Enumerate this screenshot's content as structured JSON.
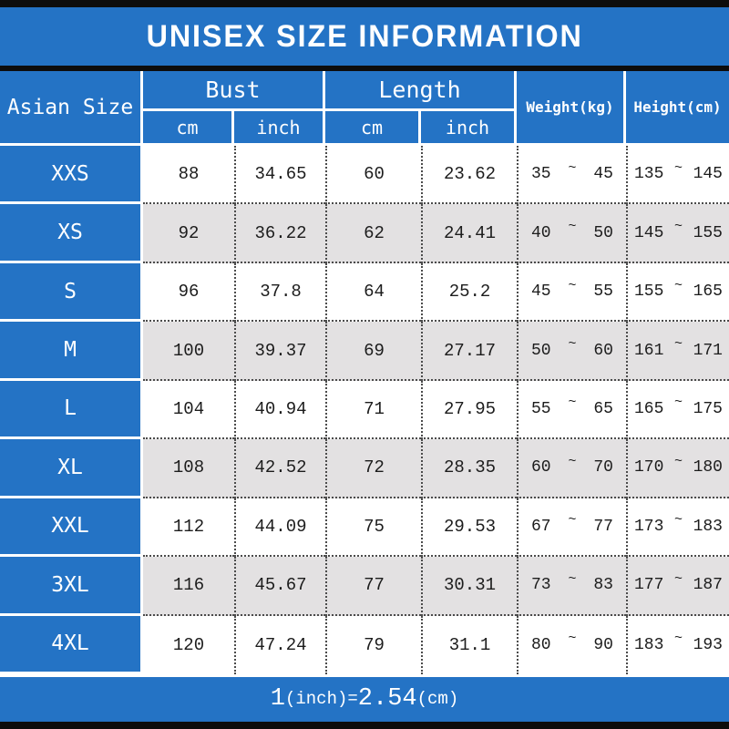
{
  "title": "UNISEX SIZE INFORMATION",
  "colors": {
    "accent_blue": "#2473c5",
    "alt_row_gray": "#e3e1e2",
    "bar_black": "#0d0d0d",
    "text_white": "#ffffff",
    "text_black": "#1c1c1c"
  },
  "header": {
    "size_column": "Asian Size",
    "bust": "Bust",
    "length": "Length",
    "cm": "cm",
    "inch": "inch",
    "weight": "Weight(kg)",
    "height": "Height(cm)"
  },
  "tilde": "~",
  "rows": [
    {
      "size": "XXS",
      "bust_cm": "88",
      "bust_inch": "34.65",
      "length_cm": "60",
      "length_inch": "23.62",
      "weight_min": "35",
      "weight_max": "45",
      "height_min": "135",
      "height_max": "145"
    },
    {
      "size": "XS",
      "bust_cm": "92",
      "bust_inch": "36.22",
      "length_cm": "62",
      "length_inch": "24.41",
      "weight_min": "40",
      "weight_max": "50",
      "height_min": "145",
      "height_max": "155"
    },
    {
      "size": "S",
      "bust_cm": "96",
      "bust_inch": "37.8",
      "length_cm": "64",
      "length_inch": "25.2",
      "weight_min": "45",
      "weight_max": "55",
      "height_min": "155",
      "height_max": "165"
    },
    {
      "size": "M",
      "bust_cm": "100",
      "bust_inch": "39.37",
      "length_cm": "69",
      "length_inch": "27.17",
      "weight_min": "50",
      "weight_max": "60",
      "height_min": "161",
      "height_max": "171"
    },
    {
      "size": "L",
      "bust_cm": "104",
      "bust_inch": "40.94",
      "length_cm": "71",
      "length_inch": "27.95",
      "weight_min": "55",
      "weight_max": "65",
      "height_min": "165",
      "height_max": "175"
    },
    {
      "size": "XL",
      "bust_cm": "108",
      "bust_inch": "42.52",
      "length_cm": "72",
      "length_inch": "28.35",
      "weight_min": "60",
      "weight_max": "70",
      "height_min": "170",
      "height_max": "180"
    },
    {
      "size": "XXL",
      "bust_cm": "112",
      "bust_inch": "44.09",
      "length_cm": "75",
      "length_inch": "29.53",
      "weight_min": "67",
      "weight_max": "77",
      "height_min": "173",
      "height_max": "183"
    },
    {
      "size": "3XL",
      "bust_cm": "116",
      "bust_inch": "45.67",
      "length_cm": "77",
      "length_inch": "30.31",
      "weight_min": "73",
      "weight_max": "83",
      "height_min": "177",
      "height_max": "187"
    },
    {
      "size": "4XL",
      "bust_cm": "120",
      "bust_inch": "47.24",
      "length_cm": "79",
      "length_inch": "31.1",
      "weight_min": "80",
      "weight_max": "90",
      "height_min": "183",
      "height_max": "193"
    }
  ],
  "footer": {
    "num1": "1",
    "label1": "(inch)=",
    "num2": "2.54",
    "label2": "(cm)"
  },
  "chart_data": {
    "type": "table",
    "title": "UNISEX SIZE INFORMATION",
    "columns": [
      "Asian Size",
      "Bust cm",
      "Bust inch",
      "Length cm",
      "Length inch",
      "Weight(kg)",
      "Height(cm)"
    ],
    "rows": [
      [
        "XXS",
        88,
        34.65,
        60,
        23.62,
        "35~45",
        "135~145"
      ],
      [
        "XS",
        92,
        36.22,
        62,
        24.41,
        "40~50",
        "145~155"
      ],
      [
        "S",
        96,
        37.8,
        64,
        25.2,
        "45~55",
        "155~165"
      ],
      [
        "M",
        100,
        39.37,
        69,
        27.17,
        "50~60",
        "161~171"
      ],
      [
        "L",
        104,
        40.94,
        71,
        27.95,
        "55~65",
        "165~175"
      ],
      [
        "XL",
        108,
        42.52,
        72,
        28.35,
        "60~70",
        "170~180"
      ],
      [
        "XXL",
        112,
        44.09,
        75,
        29.53,
        "67~77",
        "173~183"
      ],
      [
        "3XL",
        116,
        45.67,
        77,
        30.31,
        "73~83",
        "177~187"
      ],
      [
        "4XL",
        120,
        47.24,
        79,
        31.1,
        "80~90",
        "183~193"
      ]
    ],
    "note": "1(inch)=2.54(cm)",
    "layout": {
      "first_column_highlight": true,
      "alternating_row_shading": true,
      "grid": "dotted"
    }
  }
}
